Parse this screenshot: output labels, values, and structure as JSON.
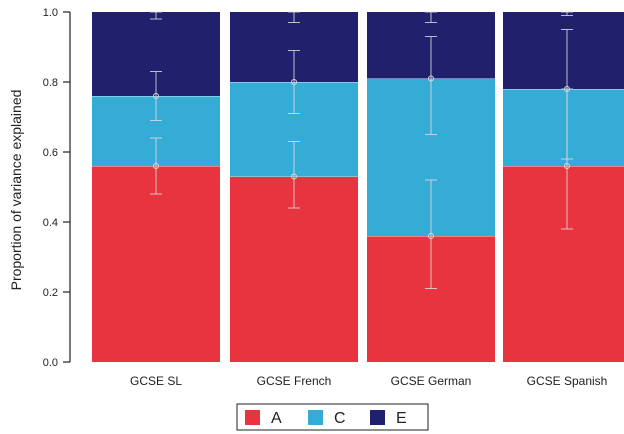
{
  "chart_data": {
    "type": "bar",
    "stacked": true,
    "categories": [
      "GCSE SL",
      "GCSE French",
      "GCSE German",
      "GCSE Spanish"
    ],
    "series": [
      {
        "name": "A",
        "color": "#e8343f",
        "values": [
          0.56,
          0.53,
          0.36,
          0.56
        ],
        "ci_low": [
          0.48,
          0.44,
          0.21,
          0.38
        ],
        "ci_high": [
          0.64,
          0.63,
          0.52,
          0.78
        ]
      },
      {
        "name": "C",
        "color": "#35acd6",
        "values": [
          0.2,
          0.27,
          0.45,
          0.22
        ],
        "ci_low": [
          0.69,
          0.71,
          0.65,
          0.58
        ],
        "ci_high": [
          0.83,
          0.89,
          0.93,
          0.95
        ]
      },
      {
        "name": "E",
        "color": "#20206c",
        "values": [
          0.24,
          0.2,
          0.19,
          0.22
        ],
        "ci_low": [
          0.98,
          0.97,
          0.97,
          0.99
        ],
        "ci_high": [
          1.0,
          1.0,
          1.0,
          1.0
        ]
      }
    ],
    "ylabel": "Proportion of variance explained",
    "xlabel": "",
    "ylim": [
      0,
      1
    ],
    "yticks": [
      "0.0",
      "0.2",
      "0.4",
      "0.6",
      "0.8",
      "1.0"
    ],
    "grid": false,
    "legend_position": "bottom-center"
  }
}
